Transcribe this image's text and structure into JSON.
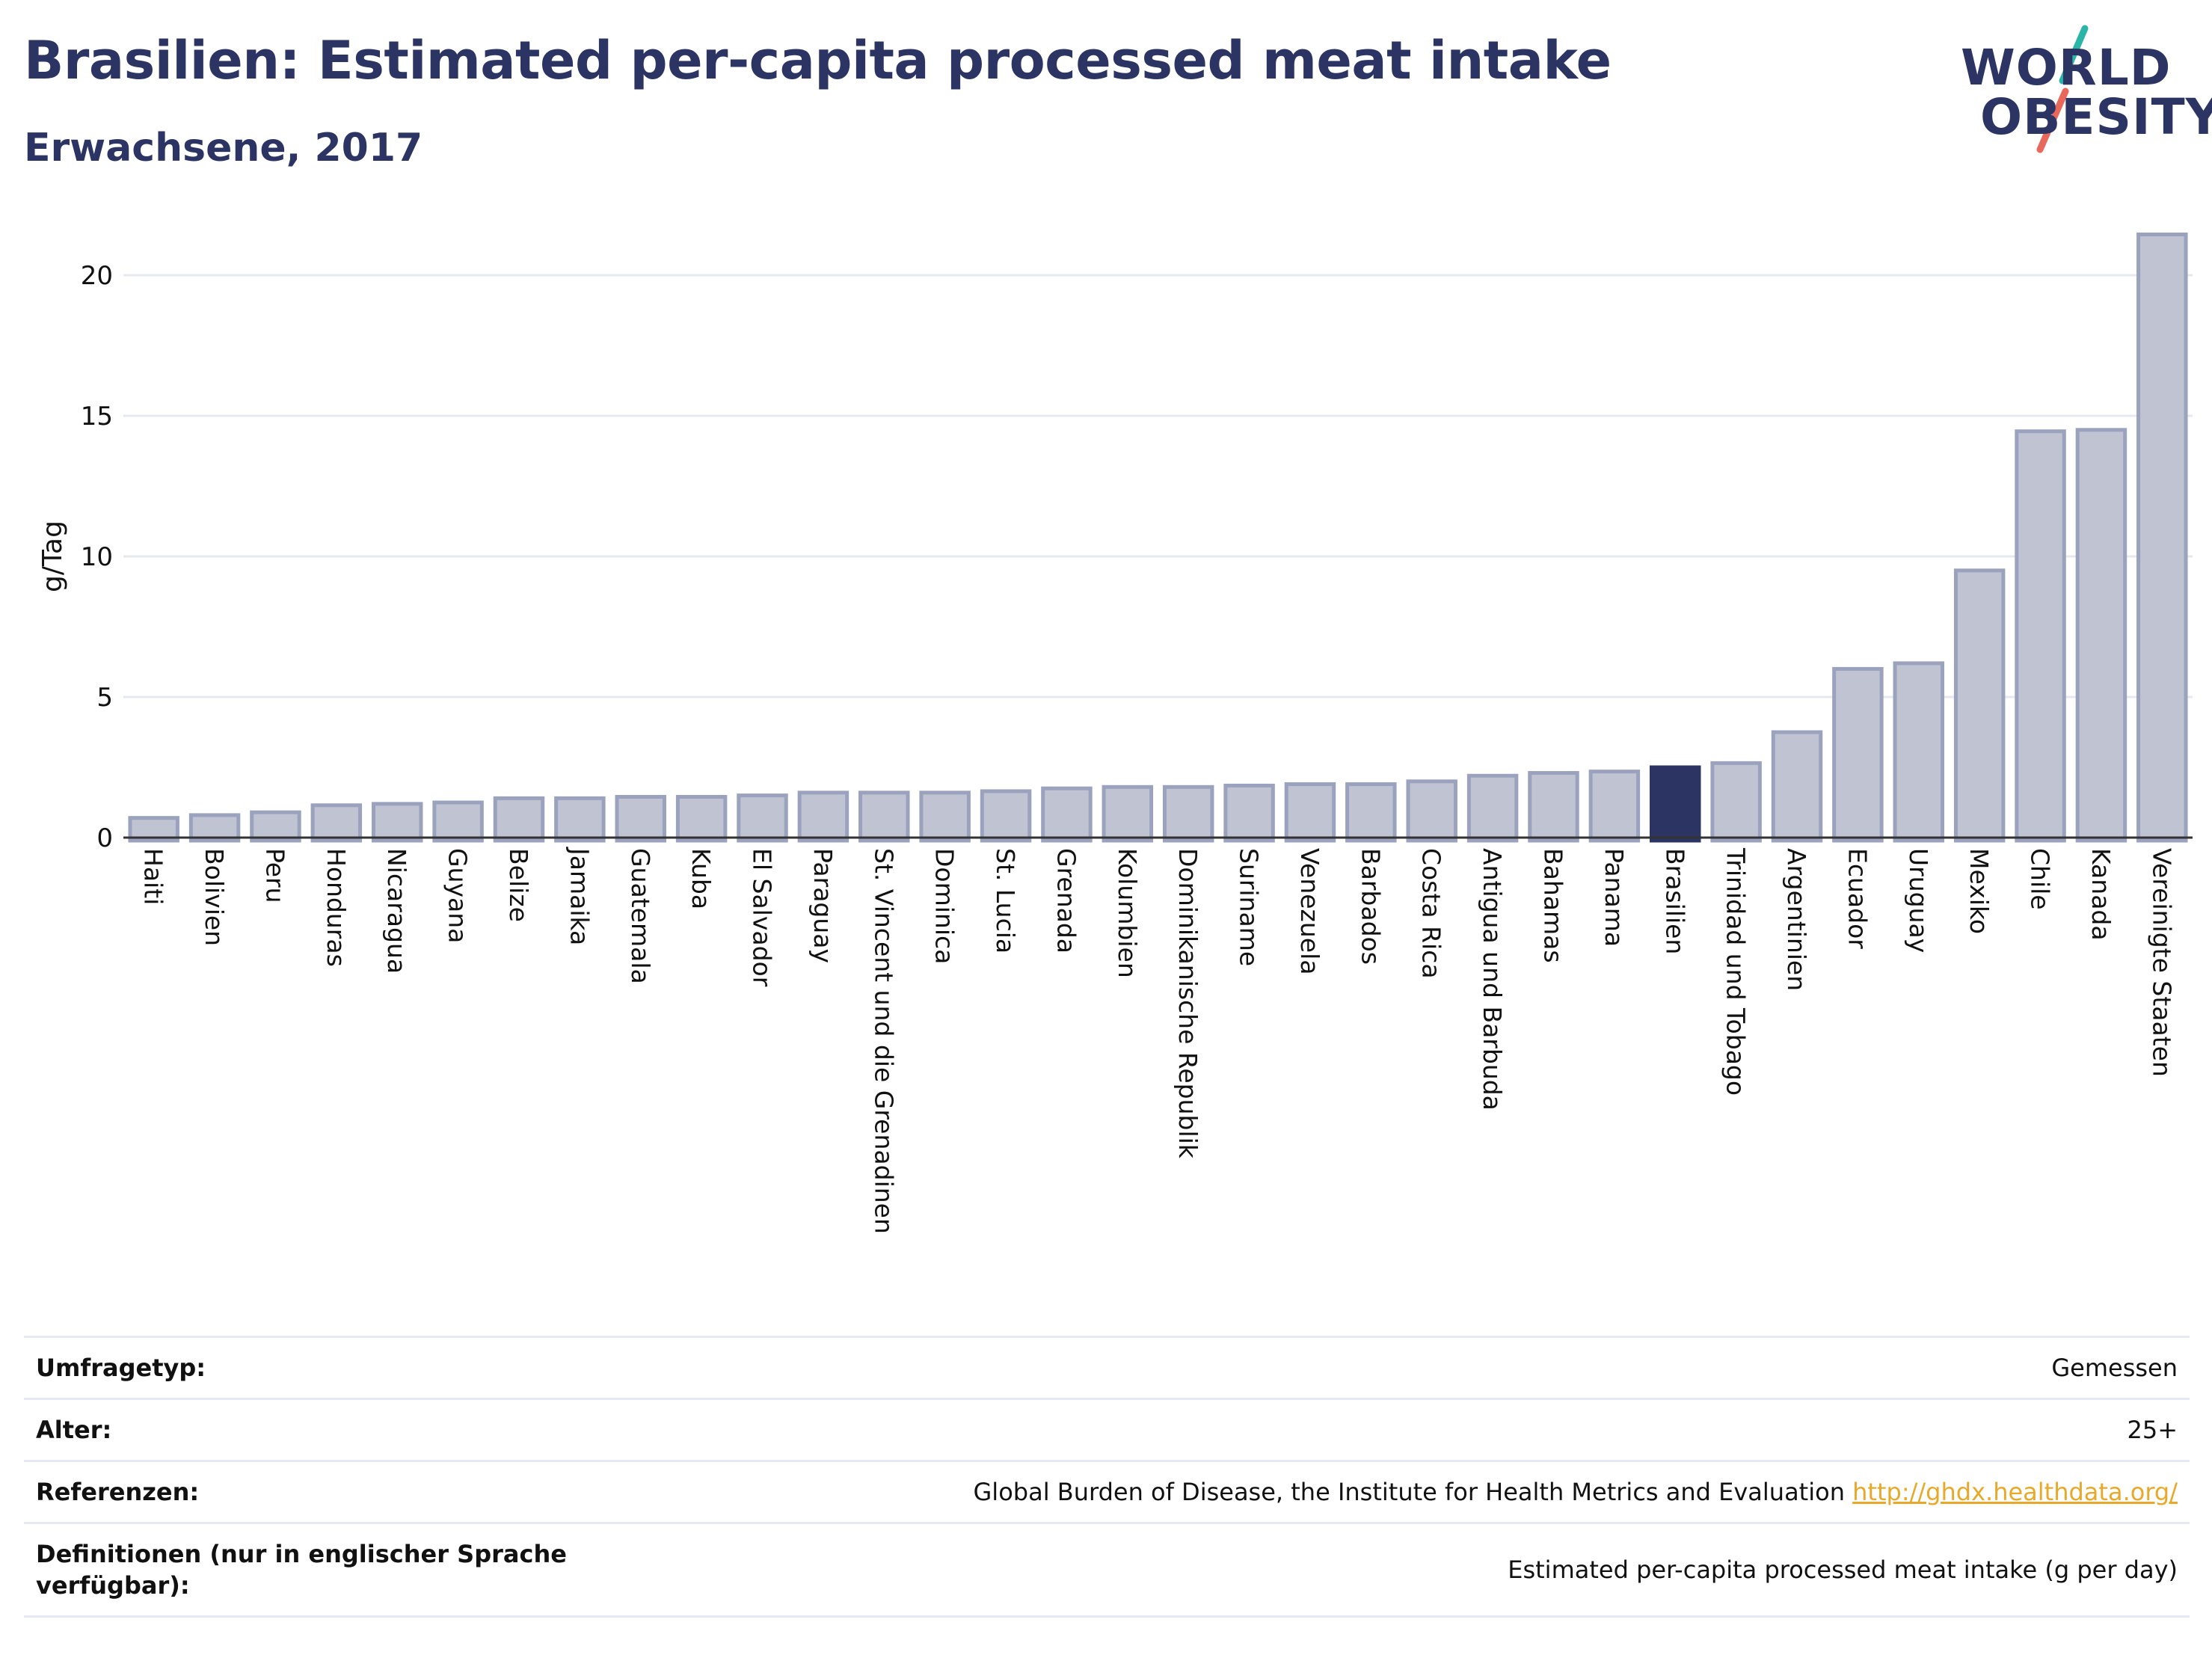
{
  "header": {
    "title": "Brasilien: Estimated per-capita processed meat intake",
    "subtitle": "Erwachsene, 2017"
  },
  "logo": {
    "line1": "WORLD",
    "line2": "OBESITY"
  },
  "colors": {
    "bar": "#bfc3d2",
    "bar_stroke": "#9ba2bd",
    "highlight": "#2b3462",
    "grid": "#e6e8ef",
    "accent_teal": "#2bb5a8",
    "accent_coral": "#e8685c"
  },
  "chart_data": {
    "type": "bar",
    "ylabel": "g/Tag",
    "ylim": [
      0,
      22
    ],
    "yticks": [
      0,
      5,
      10,
      15,
      20
    ],
    "grid": true,
    "highlight": "Brasilien",
    "categories": [
      "Haiti",
      "Bolivien",
      "Peru",
      "Honduras",
      "Nicaragua",
      "Guyana",
      "Belize",
      "Jamaika",
      "Guatemala",
      "Kuba",
      "El Salvador",
      "Paraguay",
      "St. Vincent und die Grenadinen",
      "Dominica",
      "St. Lucia",
      "Grenada",
      "Kolumbien",
      "Dominikanische Republik",
      "Suriname",
      "Venezuela",
      "Barbados",
      "Costa Rica",
      "Antigua und Barbuda",
      "Bahamas",
      "Panama",
      "Brasilien",
      "Trinidad und Tobago",
      "Argentinien",
      "Ecuador",
      "Uruguay",
      "Mexiko",
      "Chile",
      "Kanada",
      "Vereinigte Staaten"
    ],
    "values": [
      0.7,
      0.8,
      0.9,
      1.15,
      1.2,
      1.25,
      1.4,
      1.4,
      1.45,
      1.45,
      1.5,
      1.6,
      1.6,
      1.6,
      1.65,
      1.75,
      1.8,
      1.8,
      1.85,
      1.9,
      1.9,
      2.0,
      2.2,
      2.3,
      2.35,
      2.5,
      2.65,
      3.75,
      6.0,
      6.2,
      9.5,
      14.45,
      14.5,
      21.45
    ]
  },
  "info_table": [
    {
      "label": "Umfragetyp:",
      "value": "Gemessen",
      "link": ""
    },
    {
      "label": "Alter:",
      "value": "25+",
      "link": ""
    },
    {
      "label": "Referenzen:",
      "value": "Global Burden of Disease, the Institute for Health Metrics and Evaluation",
      "link": "http://ghdx.healthdata.org/"
    },
    {
      "label": "Definitionen (nur in englischer Sprache verfügbar):",
      "value": "Estimated per-capita processed meat intake (g per day)",
      "link": ""
    }
  ]
}
